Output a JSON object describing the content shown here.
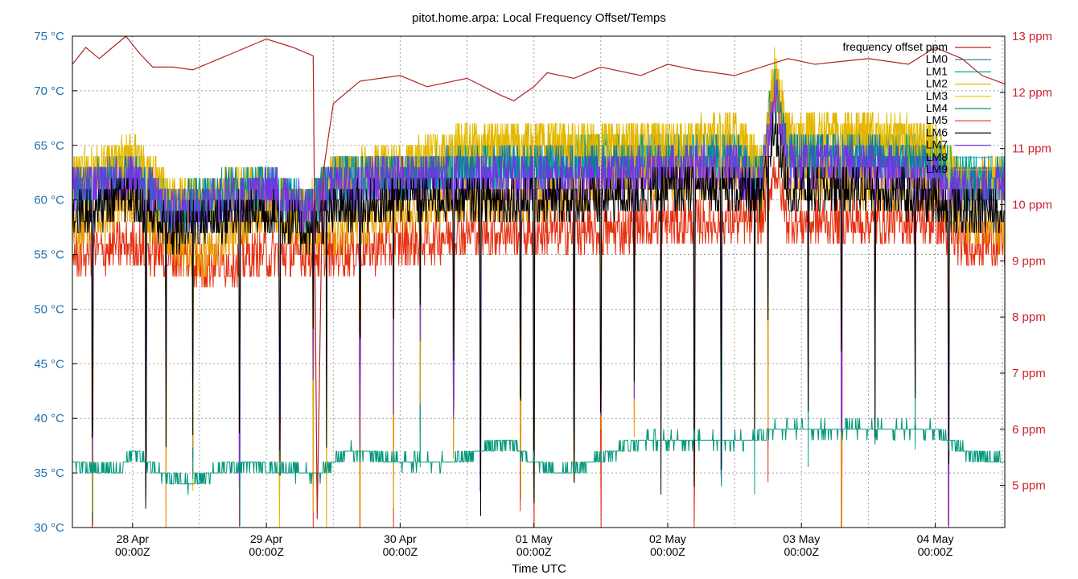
{
  "chart_data": {
    "type": "line",
    "title": "pitot.home.arpa: Local Frequency Offset/Temps",
    "xlabel": "Time UTC",
    "x_range_days": [
      -0.45,
      6.52
    ],
    "x_ticks": [
      {
        "day": 0,
        "date": "28 Apr",
        "time": "00:00Z"
      },
      {
        "day": 1,
        "date": "29 Apr",
        "time": "00:00Z"
      },
      {
        "day": 2,
        "date": "30 Apr",
        "time": "00:00Z"
      },
      {
        "day": 3,
        "date": "01 May",
        "time": "00:00Z"
      },
      {
        "day": 4,
        "date": "02 May",
        "time": "00:00Z"
      },
      {
        "day": 5,
        "date": "03 May",
        "time": "00:00Z"
      },
      {
        "day": 6,
        "date": "04 May",
        "time": "00:00Z"
      }
    ],
    "y_left": {
      "unit": "°C",
      "range": [
        30,
        75
      ],
      "ticks": [
        "75 °C",
        "70 °C",
        "65 °C",
        "60 °C",
        "55 °C",
        "50 °C",
        "45 °C",
        "40 °C",
        "35 °C",
        "30 °C"
      ],
      "tick_values": [
        75,
        70,
        65,
        60,
        55,
        50,
        45,
        40,
        35,
        30
      ],
      "color": "#1f6fad"
    },
    "y_right": {
      "unit": "ppm",
      "range": [
        4.25,
        13.0
      ],
      "ticks": [
        "13 ppm",
        "12 ppm",
        "11 ppm",
        "10 ppm",
        "9 ppm",
        "8 ppm",
        "7 ppm",
        "6 ppm",
        "5 ppm"
      ],
      "tick_values": [
        13,
        12,
        11,
        10,
        9,
        8,
        7,
        6,
        5
      ],
      "color": "#d0202e"
    },
    "grid": true,
    "legend_position": "top-right",
    "series": [
      {
        "name": "frequency offset ppm",
        "axis": "right",
        "color": "#b22222",
        "x": [
          -0.45,
          -0.35,
          -0.25,
          -0.15,
          -0.05,
          0.05,
          0.15,
          0.3,
          0.45,
          0.6,
          0.8,
          1.0,
          1.2,
          1.35,
          1.38,
          1.42,
          1.5,
          1.7,
          2.0,
          2.2,
          2.5,
          2.75,
          2.85,
          3.0,
          3.1,
          3.3,
          3.5,
          3.8,
          4.0,
          4.2,
          4.5,
          4.7,
          4.9,
          5.1,
          5.3,
          5.5,
          5.8,
          6.0,
          6.2,
          6.35,
          6.52
        ],
        "y": [
          12.5,
          12.8,
          12.6,
          12.8,
          13.0,
          12.7,
          12.45,
          12.45,
          12.4,
          12.55,
          12.75,
          12.95,
          12.8,
          12.65,
          4.4,
          10.5,
          11.8,
          12.2,
          12.3,
          12.1,
          12.25,
          11.95,
          11.85,
          12.1,
          12.35,
          12.25,
          12.45,
          12.3,
          12.5,
          12.4,
          12.3,
          12.45,
          12.6,
          12.5,
          12.55,
          12.6,
          12.5,
          12.8,
          12.6,
          12.3,
          12.15
        ]
      },
      {
        "name": "LM0",
        "color": "#0f7a9e",
        "base_x": [
          -0.45,
          0,
          0.3,
          0.5,
          1.0,
          1.3,
          1.5,
          2.0,
          2.5,
          3.0,
          3.5,
          4.0,
          4.5,
          4.7,
          4.8,
          4.9,
          5.2,
          5.5,
          6.0,
          6.2,
          6.52
        ],
        "base_y": [
          61,
          62,
          59,
          60,
          61,
          59,
          62,
          62,
          63,
          63,
          63,
          63,
          64,
          62,
          70,
          64,
          64,
          64,
          63,
          61,
          62
        ]
      },
      {
        "name": "LM1",
        "color": "#00a585",
        "base_x": [
          -0.45,
          0,
          0.3,
          0.5,
          1.0,
          1.3,
          1.5,
          2.0,
          2.5,
          3.0,
          3.5,
          4.0,
          4.5,
          4.7,
          4.8,
          4.9,
          5.2,
          5.5,
          6.0,
          6.2,
          6.52
        ],
        "base_y": [
          61,
          62,
          59,
          60,
          61,
          59,
          62,
          62,
          63,
          63,
          64,
          64,
          64,
          62,
          71,
          64,
          64,
          64,
          64,
          62,
          62
        ]
      },
      {
        "name": "LM2",
        "color": "#e0b400",
        "base_x": [
          -0.45,
          0,
          0.3,
          0.5,
          1.0,
          1.3,
          1.5,
          2.0,
          2.5,
          3.0,
          3.5,
          4.0,
          4.5,
          4.7,
          4.8,
          4.9,
          5.2,
          5.5,
          6.0,
          6.2,
          6.52
        ],
        "base_y": [
          62,
          64,
          60,
          60,
          61,
          59,
          62,
          63,
          65,
          65,
          65,
          65,
          66,
          63,
          72,
          66,
          66,
          66,
          65,
          61,
          62
        ]
      },
      {
        "name": "LM3",
        "color": "#e8c000",
        "base_x": [
          -0.45,
          0,
          0.3,
          0.5,
          1.0,
          1.3,
          1.5,
          2.0,
          2.5,
          3.0,
          3.5,
          4.0,
          4.5,
          4.7,
          4.8,
          4.9,
          5.2,
          5.5,
          6.0,
          6.2,
          6.52
        ],
        "base_y": [
          62,
          64,
          60,
          60,
          61,
          59,
          62,
          63,
          65,
          65,
          65,
          65,
          66,
          63,
          72,
          66,
          66,
          66,
          65,
          61,
          62
        ]
      },
      {
        "name": "LM4",
        "color": "#00977a",
        "base_x": [
          -0.45,
          -0.1,
          0.0,
          0.2,
          0.4,
          0.6,
          0.9,
          1.2,
          1.4,
          1.6,
          2.0,
          2.4,
          2.8,
          3.0,
          3.2,
          3.4,
          3.6,
          3.8,
          4.0,
          4.3,
          4.6,
          4.8,
          5.0,
          5.4,
          5.8,
          6.0,
          6.2,
          6.52
        ],
        "base_y": [
          36,
          35,
          37,
          35,
          34,
          35,
          36,
          35,
          35,
          37,
          36,
          36,
          38,
          36,
          35,
          36,
          37,
          38,
          38,
          38,
          38,
          39,
          39,
          39,
          39,
          39,
          37,
          36
        ]
      },
      {
        "name": "LM5",
        "color": "#e63010",
        "base_x": [
          -0.45,
          0,
          0.5,
          1.0,
          1.5,
          2.0,
          2.5,
          3.0,
          3.5,
          4.0,
          4.5,
          4.7,
          4.8,
          4.9,
          5.2,
          5.5,
          6.0,
          6.2,
          6.52
        ],
        "base_y": [
          55,
          56,
          54,
          55,
          55,
          56,
          57,
          57,
          57,
          58,
          58,
          58,
          63,
          58,
          58,
          58,
          58,
          56,
          56
        ]
      },
      {
        "name": "LM6",
        "color": "#000000",
        "base_x": [
          -0.45,
          0,
          0.3,
          0.5,
          1.0,
          1.3,
          1.5,
          2.0,
          2.5,
          3.0,
          3.5,
          4.0,
          4.5,
          4.7,
          4.8,
          4.9,
          5.2,
          5.5,
          6.0,
          6.2,
          6.52
        ],
        "base_y": [
          59,
          60,
          57,
          58,
          59,
          57,
          59,
          60,
          60,
          60,
          60,
          61,
          61,
          60,
          67,
          61,
          61,
          61,
          60,
          59,
          59
        ]
      },
      {
        "name": "LM7",
        "color": "#7a2fe8",
        "base_x": [
          -0.45,
          0,
          0.3,
          0.5,
          1.0,
          1.3,
          1.5,
          2.0,
          2.5,
          3.0,
          3.5,
          4.0,
          4.5,
          4.7,
          4.8,
          4.9,
          5.2,
          5.5,
          6.0,
          6.2,
          6.52
        ],
        "base_y": [
          61,
          62,
          59,
          59,
          61,
          59,
          61,
          62,
          62,
          62,
          62,
          63,
          63,
          61,
          70,
          63,
          63,
          63,
          62,
          61,
          61
        ]
      },
      {
        "name": "LM8",
        "color": "#2ea0e0",
        "base_x": [
          -0.45,
          0,
          0.3,
          0.5,
          1.0,
          1.3,
          1.5,
          2.0,
          2.5,
          3.0,
          3.5,
          4.0,
          4.5,
          4.7,
          4.8,
          4.9,
          5.2,
          5.5,
          6.0,
          6.2,
          6.52
        ],
        "base_y": [
          61,
          62,
          59,
          60,
          61,
          59,
          62,
          62,
          63,
          63,
          63,
          64,
          64,
          62,
          70,
          64,
          64,
          64,
          63,
          61,
          62
        ]
      },
      {
        "name": "LM9",
        "color": "#e8a000",
        "base_x": [
          -0.45,
          0,
          0.3,
          0.5,
          1.0,
          1.3,
          1.5,
          2.0,
          2.5,
          3.0,
          3.5,
          4.0,
          4.5,
          4.7,
          4.8,
          4.9,
          5.2,
          5.5,
          6.0,
          6.2,
          6.52
        ],
        "base_y": [
          57,
          60,
          56,
          55,
          59,
          57,
          57,
          59,
          60,
          60,
          61,
          62,
          62,
          60,
          70,
          62,
          62,
          61,
          61,
          58,
          57
        ]
      }
    ],
    "legend": [
      {
        "label": "frequency offset ppm",
        "color": "#b22222"
      },
      {
        "label": "LM0",
        "color": "#0f7a9e"
      },
      {
        "label": "LM1",
        "color": "#00a585"
      },
      {
        "label": "LM2",
        "color": "#e0b400"
      },
      {
        "label": "LM3",
        "color": "#e8c000"
      },
      {
        "label": "LM4",
        "color": "#00977a"
      },
      {
        "label": "LM5",
        "color": "#e63010"
      },
      {
        "label": "LM6",
        "color": "#000000"
      },
      {
        "label": "LM7",
        "color": "#7a2fe8"
      },
      {
        "label": "LM8",
        "color": "#2ea0e0"
      },
      {
        "label": "LM9",
        "color": "#e8a000"
      }
    ],
    "dip_days": [
      -0.3,
      0.1,
      0.25,
      0.45,
      0.8,
      1.1,
      1.35,
      1.45,
      1.7,
      1.95,
      2.15,
      2.4,
      2.6,
      2.9,
      3.0,
      3.3,
      3.5,
      3.75,
      3.95,
      4.2,
      4.4,
      4.65,
      4.75,
      5.05,
      5.3,
      5.55,
      5.85,
      6.1
    ]
  }
}
